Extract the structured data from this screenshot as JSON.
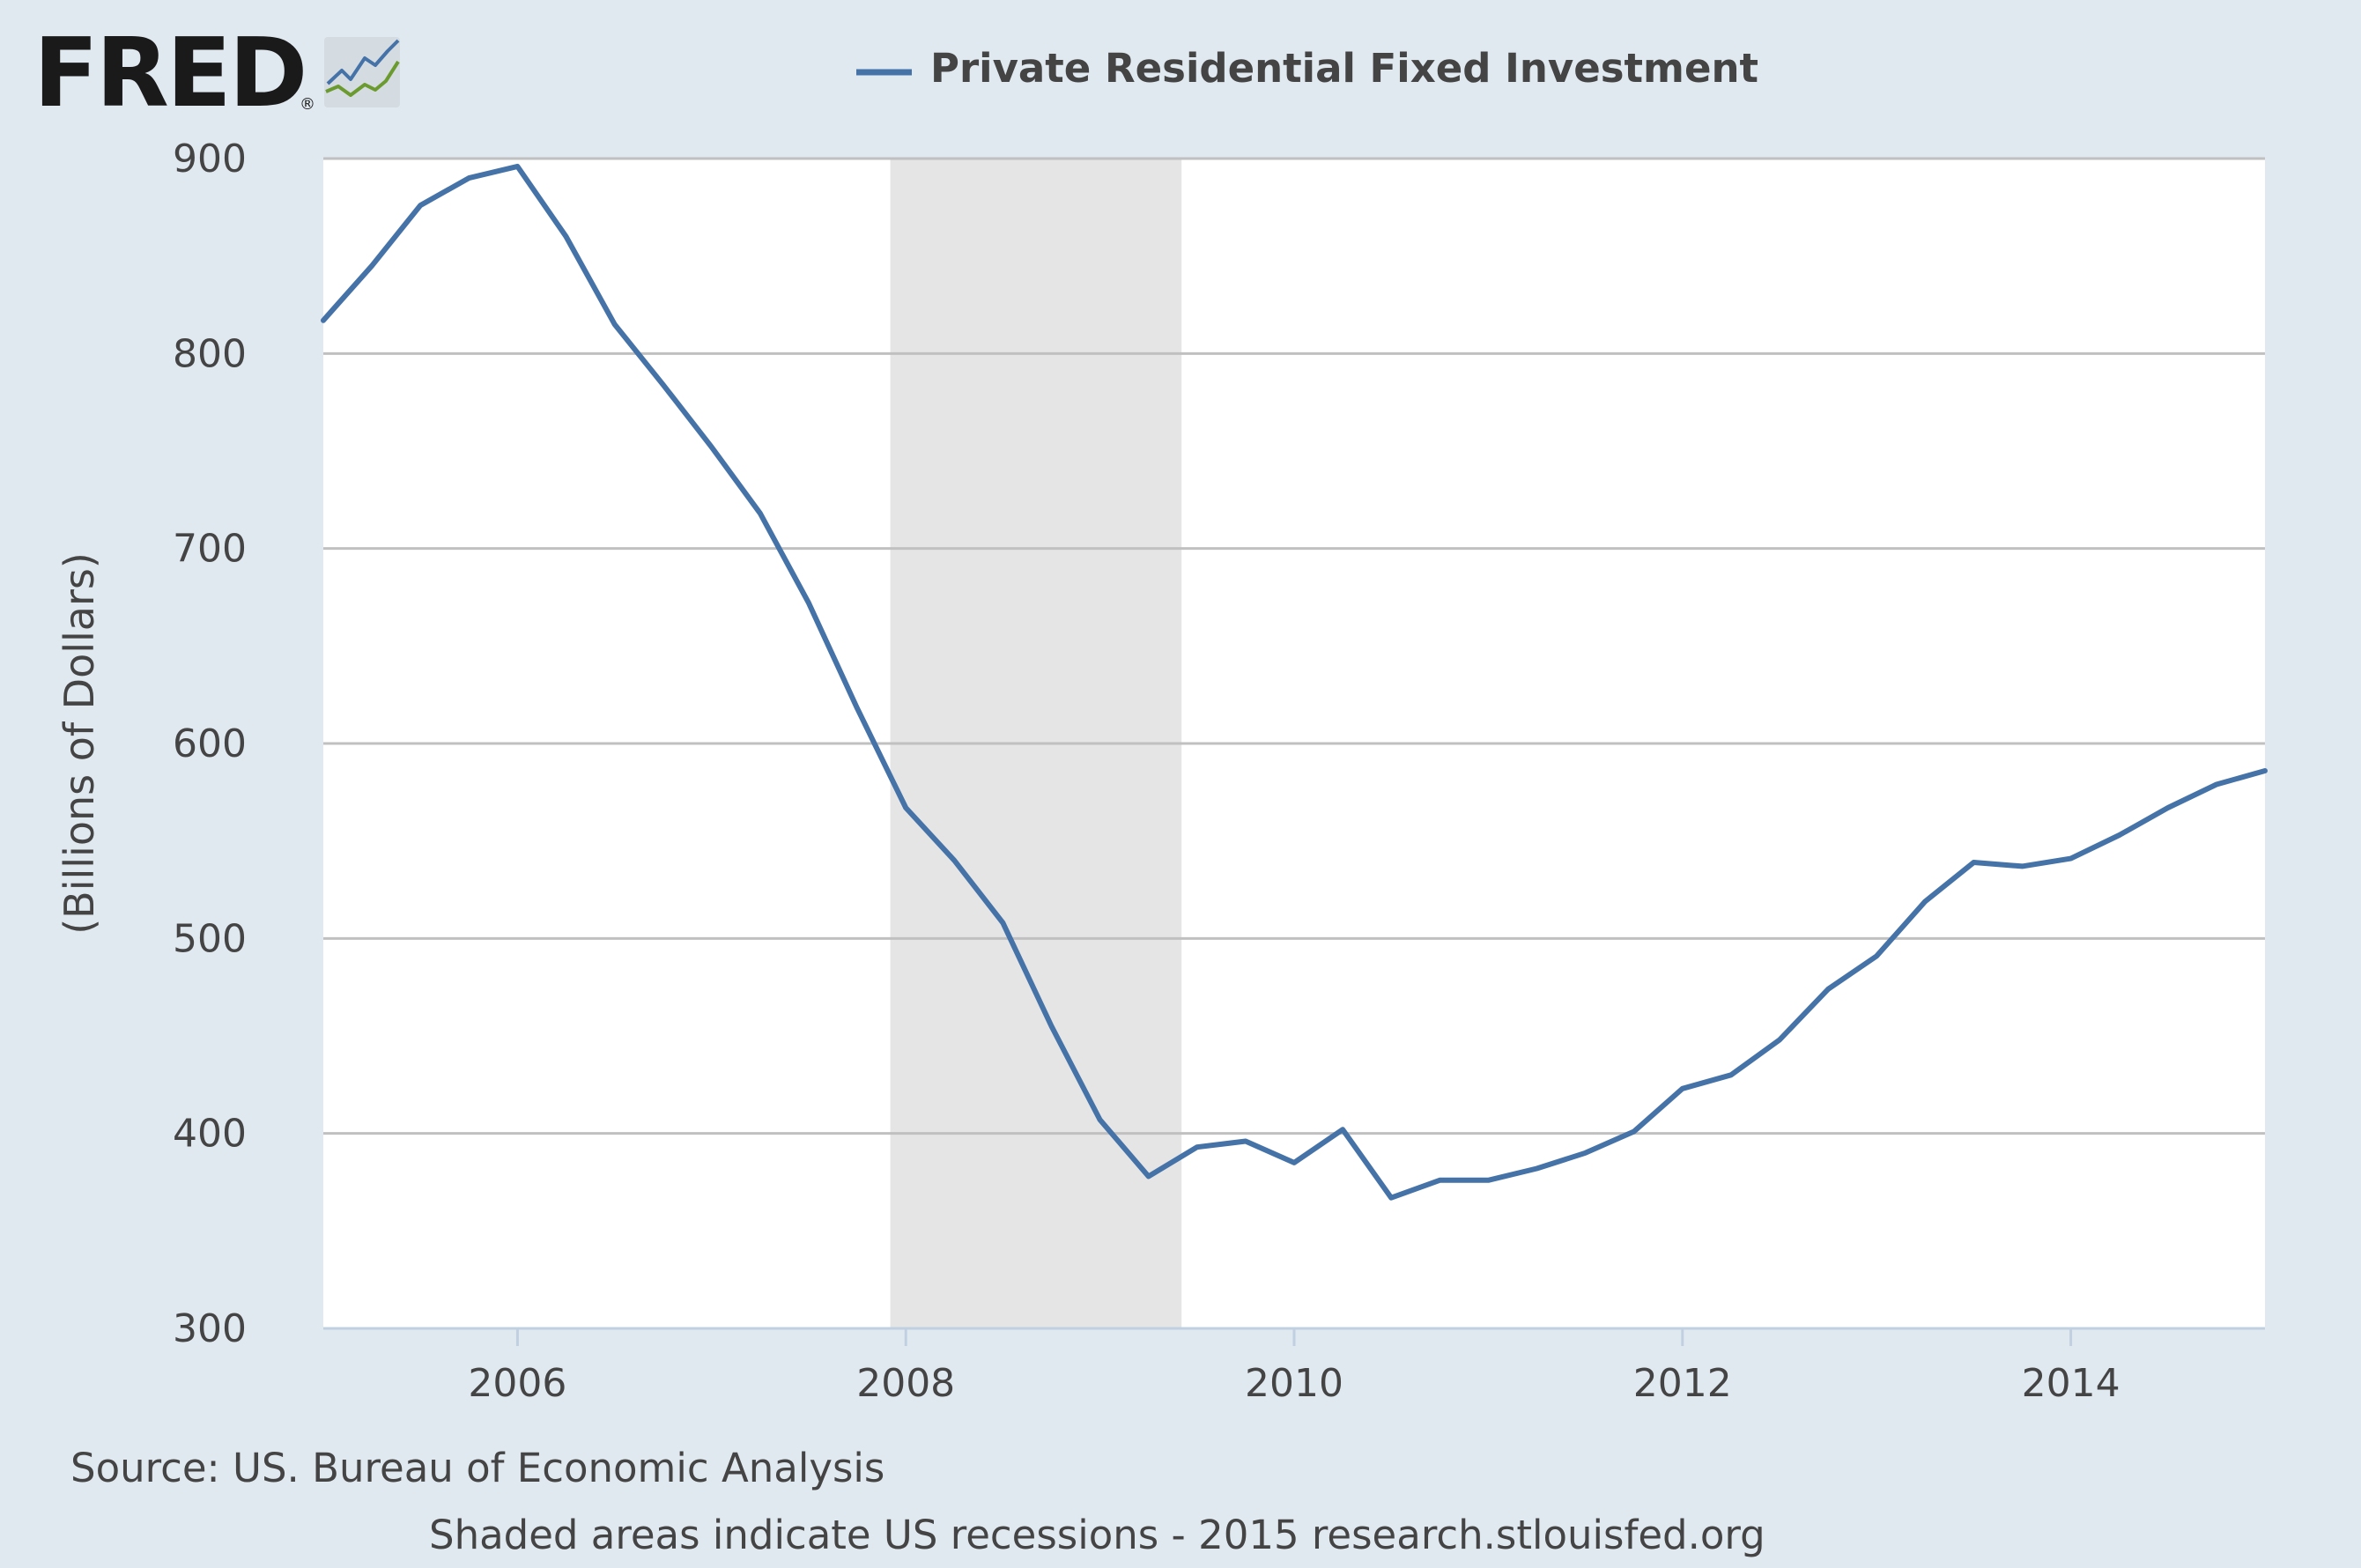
{
  "brand": {
    "name": "FRED",
    "trademark": "®",
    "logo_icon": "fred-line-chart-icon"
  },
  "colors": {
    "background": "#e1e9f0",
    "plot_background": "#ffffff",
    "series_line": "#4572a7",
    "gridline": "#c0c0c0",
    "recession_shading": "#e5e5e5",
    "text": "#444444",
    "brand_text": "#1a1a1a"
  },
  "chart_data": {
    "type": "line",
    "legend_position": "top-center",
    "grid": true,
    "ylabel": "(Billions of Dollars)",
    "xlabel": "",
    "ylim": [
      300,
      900
    ],
    "xlim": [
      2005.0,
      2015.0
    ],
    "y_ticks": [
      "300",
      "400",
      "500",
      "600",
      "700",
      "800",
      "900"
    ],
    "x_ticks": [
      "2006",
      "2008",
      "2010",
      "2012",
      "2014"
    ],
    "recessions": [
      {
        "start": 2007.92,
        "end": 2009.42
      }
    ],
    "series": [
      {
        "name": "Private Residential Fixed Investment",
        "x": [
          2005.0,
          2005.25,
          2005.5,
          2005.75,
          2006.0,
          2006.25,
          2006.5,
          2006.75,
          2007.0,
          2007.25,
          2007.5,
          2007.75,
          2008.0,
          2008.25,
          2008.5,
          2008.75,
          2009.0,
          2009.25,
          2009.5,
          2009.75,
          2010.0,
          2010.25,
          2010.5,
          2010.75,
          2011.0,
          2011.25,
          2011.5,
          2011.75,
          2012.0,
          2012.25,
          2012.5,
          2012.75,
          2013.0,
          2013.25,
          2013.5,
          2013.75,
          2014.0,
          2014.25,
          2014.5,
          2014.75,
          2015.0
        ],
        "values": [
          817,
          845,
          876,
          890,
          896,
          860,
          815,
          784,
          752,
          718,
          672,
          618,
          567,
          540,
          508,
          455,
          407,
          378,
          393,
          396,
          385,
          402,
          367,
          376,
          376,
          382,
          390,
          401,
          423,
          430,
          448,
          474,
          491,
          519,
          539,
          537,
          541,
          553,
          567,
          579,
          586
        ]
      }
    ]
  },
  "footer": {
    "source": "Source: US. Bureau of Economic Analysis",
    "note": "Shaded areas indicate US recessions - 2015 research.stlouisfed.org"
  }
}
